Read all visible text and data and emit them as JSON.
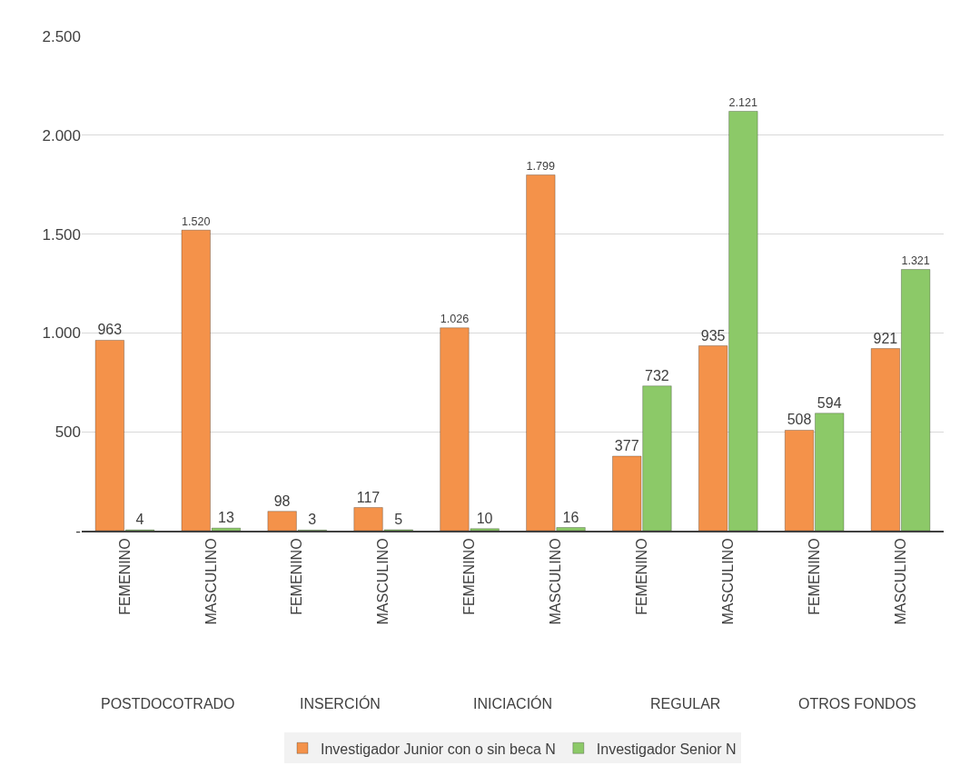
{
  "chart_data": {
    "type": "bar",
    "categories": [
      "FEMENINO",
      "MASCULINO",
      "FEMENINO",
      "MASCULINO",
      "FEMENINO",
      "MASCULINO",
      "FEMENINO",
      "MASCULINO",
      "FEMENINO",
      "MASCULINO"
    ],
    "series": [
      {
        "name": "Investigador Junior con o sin beca N",
        "color": "#f4924a",
        "values": [
          963,
          1520,
          98,
          117,
          1026,
          1799,
          377,
          935,
          508,
          921
        ],
        "value_labels": [
          "963",
          "1.520",
          "98",
          "117",
          "1.026",
          "1.799",
          "377",
          "935",
          "508",
          "921"
        ]
      },
      {
        "name": "Investigador Senior N",
        "color": "#8cc968",
        "values": [
          4,
          13,
          3,
          5,
          10,
          16,
          732,
          2121,
          594,
          1321
        ],
        "value_labels": [
          "4",
          "13",
          "3",
          "5",
          "10",
          "16",
          "732",
          "2.121",
          "594",
          "1.321"
        ]
      }
    ],
    "annotations": [
      "POSTDOCOTRADO",
      "INSERCIÓN",
      "INICIACIÓN",
      "REGULAR",
      "OTROS FONDOS"
    ],
    "ylim": [
      0,
      2500
    ],
    "yticks": [
      {
        "value": 0,
        "label": "-"
      },
      {
        "value": 500,
        "label": "500"
      },
      {
        "value": 1000,
        "label": "1.000"
      },
      {
        "value": 1500,
        "label": "1.500"
      },
      {
        "value": 2000,
        "label": "2.000"
      },
      {
        "value": 2500,
        "label": "2.500"
      }
    ],
    "grid": "y",
    "legend": "bottom"
  }
}
